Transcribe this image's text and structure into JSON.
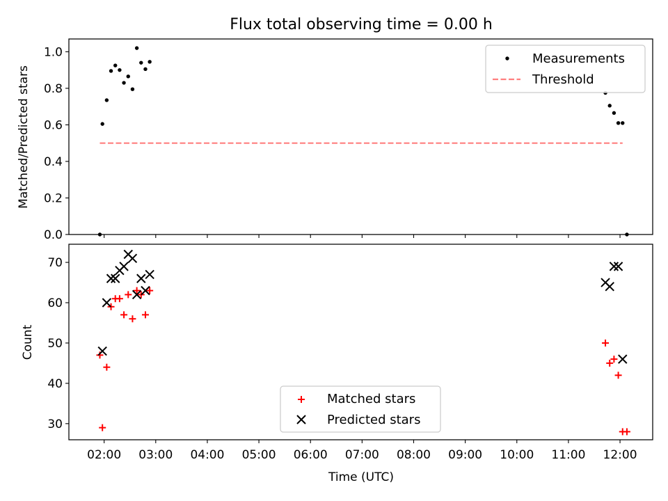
{
  "figure": {
    "title": "Flux total observing time = 0.00 h"
  },
  "colors": {
    "measurements": "#000000",
    "threshold": "#ff7f7f",
    "matched": "#ff0000",
    "predicted": "#000000",
    "axes": "#000000"
  },
  "chart_data": [
    {
      "type": "scatter",
      "panel": "top",
      "ylabel": "Matched/Predicted stars",
      "xlabel": "",
      "ylim": [
        0.0,
        1.07
      ],
      "yticks": [
        0.0,
        0.2,
        0.4,
        0.6,
        0.8,
        1.0
      ],
      "ytick_labels": [
        "0.0",
        "0.2",
        "0.4",
        "0.6",
        "0.8",
        "1.0"
      ],
      "grid": false,
      "legend_position": "top-right",
      "series": [
        {
          "name": "Measurements",
          "marker": "dot",
          "points": [
            {
              "x": "01:55",
              "y": 0.0
            },
            {
              "x": "01:58",
              "y": 0.605
            },
            {
              "x": "02:03",
              "y": 0.735
            },
            {
              "x": "02:08",
              "y": 0.895
            },
            {
              "x": "02:13",
              "y": 0.925
            },
            {
              "x": "02:18",
              "y": 0.9
            },
            {
              "x": "02:23",
              "y": 0.83
            },
            {
              "x": "02:28",
              "y": 0.865
            },
            {
              "x": "02:33",
              "y": 0.795
            },
            {
              "x": "02:38",
              "y": 1.02
            },
            {
              "x": "02:43",
              "y": 0.94
            },
            {
              "x": "02:48",
              "y": 0.905
            },
            {
              "x": "02:53",
              "y": 0.945
            },
            {
              "x": "11:43",
              "y": 0.775
            },
            {
              "x": "11:48",
              "y": 0.705
            },
            {
              "x": "11:53",
              "y": 0.665
            },
            {
              "x": "11:58",
              "y": 0.61
            },
            {
              "x": "12:03",
              "y": 0.61
            },
            {
              "x": "12:08",
              "y": 0.0
            }
          ]
        },
        {
          "name": "Threshold",
          "type": "line",
          "style": "dashed",
          "points": [
            {
              "x": "01:55",
              "y": 0.5
            },
            {
              "x": "12:03",
              "y": 0.5
            }
          ]
        }
      ]
    },
    {
      "type": "scatter",
      "panel": "bottom",
      "ylabel": "Count",
      "xlabel": "Time (UTC)",
      "ylim": [
        26,
        74.5
      ],
      "yticks": [
        30,
        40,
        50,
        60,
        70
      ],
      "ytick_labels": [
        "30",
        "40",
        "50",
        "60",
        "70"
      ],
      "xlim": [
        "01:19",
        "12:38"
      ],
      "xticks": [
        "02:00",
        "03:00",
        "04:00",
        "05:00",
        "06:00",
        "07:00",
        "08:00",
        "09:00",
        "10:00",
        "11:00",
        "12:00"
      ],
      "xtick_labels": [
        "02:00",
        "03:00",
        "04:00",
        "05:00",
        "06:00",
        "07:00",
        "08:00",
        "09:00",
        "10:00",
        "11:00",
        "12:00"
      ],
      "grid": false,
      "legend_position": "lower-center",
      "series": [
        {
          "name": "Matched stars",
          "marker": "plus",
          "points": [
            {
              "x": "01:55",
              "y": 47
            },
            {
              "x": "01:58",
              "y": 29
            },
            {
              "x": "02:03",
              "y": 44
            },
            {
              "x": "02:08",
              "y": 59
            },
            {
              "x": "02:13",
              "y": 61
            },
            {
              "x": "02:18",
              "y": 61
            },
            {
              "x": "02:23",
              "y": 57
            },
            {
              "x": "02:28",
              "y": 62
            },
            {
              "x": "02:33",
              "y": 56
            },
            {
              "x": "02:38",
              "y": 63
            },
            {
              "x": "02:43",
              "y": 62
            },
            {
              "x": "02:48",
              "y": 57
            },
            {
              "x": "02:53",
              "y": 63
            },
            {
              "x": "11:43",
              "y": 50
            },
            {
              "x": "11:48",
              "y": 45
            },
            {
              "x": "11:53",
              "y": 46
            },
            {
              "x": "11:58",
              "y": 42
            },
            {
              "x": "12:03",
              "y": 28
            },
            {
              "x": "12:08",
              "y": 28
            }
          ]
        },
        {
          "name": "Predicted stars",
          "marker": "x",
          "points": [
            {
              "x": "01:58",
              "y": 48
            },
            {
              "x": "02:03",
              "y": 60
            },
            {
              "x": "02:08",
              "y": 66
            },
            {
              "x": "02:13",
              "y": 66
            },
            {
              "x": "02:18",
              "y": 68
            },
            {
              "x": "02:23",
              "y": 69
            },
            {
              "x": "02:28",
              "y": 72
            },
            {
              "x": "02:33",
              "y": 71
            },
            {
              "x": "02:38",
              "y": 62
            },
            {
              "x": "02:43",
              "y": 66
            },
            {
              "x": "02:48",
              "y": 63
            },
            {
              "x": "02:53",
              "y": 67
            },
            {
              "x": "11:43",
              "y": 65
            },
            {
              "x": "11:48",
              "y": 64
            },
            {
              "x": "11:53",
              "y": 69
            },
            {
              "x": "11:58",
              "y": 69
            },
            {
              "x": "12:03",
              "y": 46
            }
          ]
        }
      ]
    }
  ]
}
